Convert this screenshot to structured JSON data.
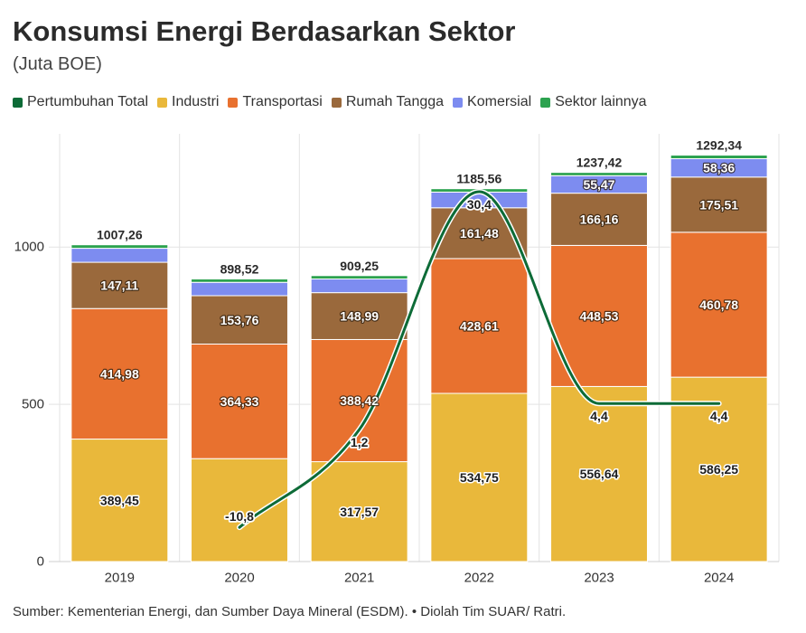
{
  "chart_data": {
    "type": "bar",
    "stacked": true,
    "title": "Konsumsi Energi Berdasarkan Sektor",
    "subtitle": "(Juta BOE)",
    "source": "Sumber: Kementerian Energi, dan Sumber Daya Mineral (ESDM). • Diolah Tim SUAR/ Ratri.",
    "categories": [
      "2019",
      "2020",
      "2021",
      "2022",
      "2023",
      "2024"
    ],
    "ylim": [
      0,
      1360
    ],
    "yticks": [
      0,
      500,
      1000
    ],
    "ytick_labels": [
      "0",
      "500",
      "1000"
    ],
    "grid": true,
    "legend_position": "top-left",
    "series": [
      {
        "name": "Industri",
        "color": "#e9b83b",
        "values": [
          389.45,
          327.2,
          317.57,
          534.75,
          556.64,
          586.25
        ],
        "labels": [
          "389,45",
          null,
          "317,57",
          "534,75",
          "556,64",
          "586,25"
        ]
      },
      {
        "name": "Transportasi",
        "color": "#e8712f",
        "values": [
          414.98,
          364.33,
          388.42,
          428.61,
          448.53,
          460.78
        ],
        "labels": [
          "414,98",
          "364,33",
          "388,42",
          "428,61",
          "448,53",
          "460,78"
        ]
      },
      {
        "name": "Rumah Tangga",
        "color": "#9a693c",
        "values": [
          147.11,
          153.76,
          148.99,
          161.48,
          166.16,
          175.51
        ],
        "labels": [
          "147,11",
          "153,76",
          "148,99",
          "161,48",
          "166,16",
          "175,51"
        ]
      },
      {
        "name": "Komersial",
        "color": "#7d8cf0",
        "values": [
          44.52,
          42.5,
          43.5,
          49.9,
          55.47,
          58.36
        ],
        "labels": [
          null,
          null,
          null,
          null,
          "55,47",
          "58,36"
        ]
      },
      {
        "name": "Sektor lainnya",
        "color": "#2ca24f",
        "values": [
          11.2,
          10.73,
          10.77,
          10.82,
          10.62,
          11.44
        ],
        "labels": [
          null,
          null,
          null,
          null,
          null,
          null
        ]
      }
    ],
    "totals": [
      1007.26,
      898.52,
      909.25,
      1185.56,
      1237.42,
      1292.34
    ],
    "total_labels": [
      "1007,26",
      "898,52",
      "909,25",
      "1185,56",
      "1237,42",
      "1292,34"
    ],
    "line": {
      "name": "Pertumbuhan Total",
      "type": "line",
      "axis": "secondary",
      "color": "#0d6b37",
      "values": [
        null,
        -10.8,
        1.2,
        30.4,
        4.4,
        4.4
      ],
      "labels": [
        null,
        "-10,8",
        "1,2",
        "30,4",
        "4,4",
        "4,4"
      ],
      "y2lim": [
        -15,
        37.5
      ]
    }
  }
}
